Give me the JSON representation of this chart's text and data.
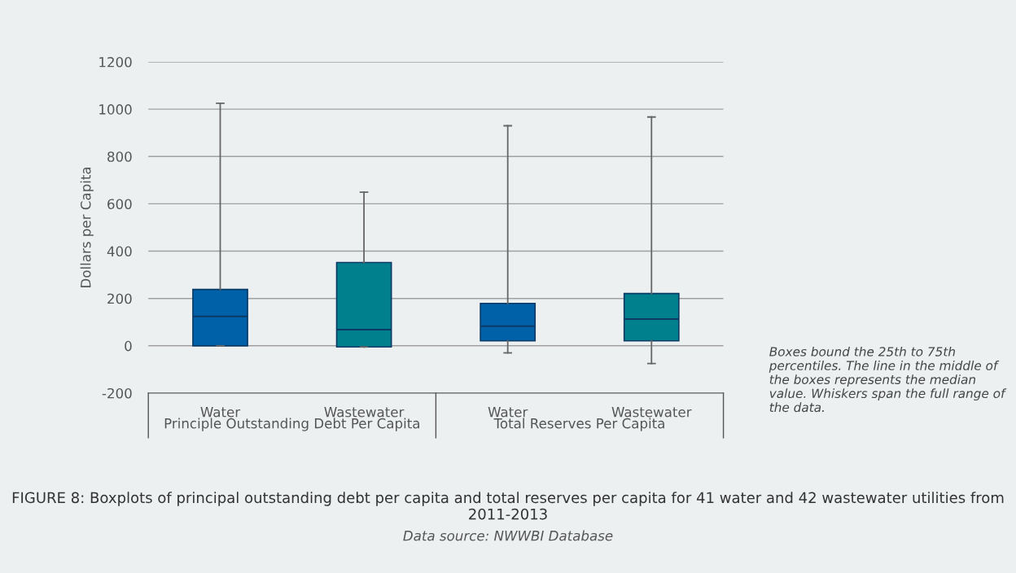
{
  "chart_data": {
    "type": "box",
    "title": "FIGURE 8: Boxplots of principal outstanding debt per capita and total reserves per capita for 41 water and 42 wastewater utilities from 2011-2013",
    "ylabel": "Dollars per Capita",
    "categories": [
      "Water",
      "Wastewater",
      "Water",
      "Wastewater"
    ],
    "colors": [
      "#0060a8",
      "#00808c",
      "#0060a8",
      "#00808c"
    ],
    "boxes": [
      {
        "low": 0,
        "q1": 0,
        "median": 124,
        "q3": 238,
        "high": 1025
      },
      {
        "low": -5,
        "q1": -5,
        "median": 68,
        "q3": 352,
        "high": 649
      },
      {
        "low": -30,
        "q1": 21,
        "median": 83,
        "q3": 179,
        "high": 930
      },
      {
        "low": -75,
        "q1": 21,
        "median": 113,
        "q3": 221,
        "high": 967
      }
    ],
    "ylim": [
      -200,
      1200
    ],
    "yticks": [
      -200,
      0,
      200,
      400,
      600,
      800,
      1000,
      1200
    ],
    "grid": "y",
    "annotations": [
      "Principle Outstanding Debt Per Capita",
      "Total Reserves Per Capita",
      "Boxes bound the 25th to 75th percentiles. The line in the middle of the boxes represents the median value. Whiskers span the full range of the data.",
      "Data source: NWWBI Database"
    ]
  }
}
